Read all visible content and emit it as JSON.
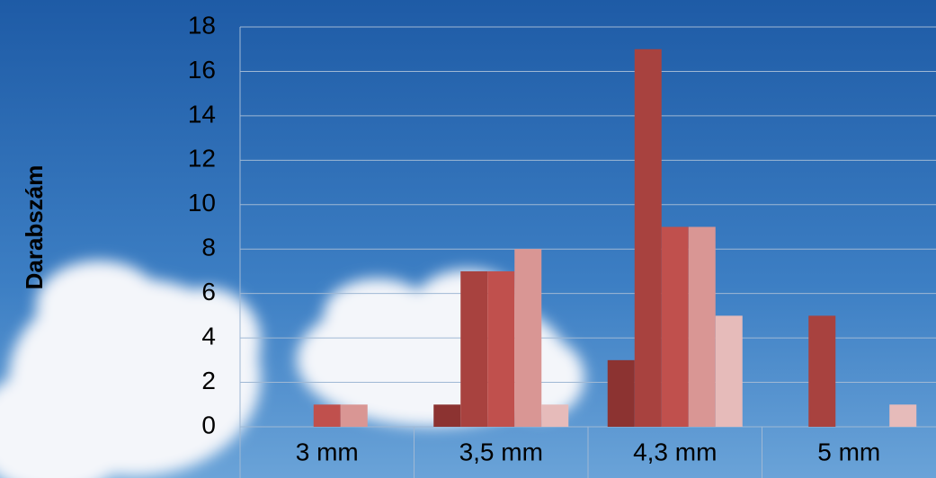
{
  "chart_data": {
    "type": "bar",
    "y_label": "Darabszám",
    "categories": [
      "3 mm",
      "3,5 mm",
      "4,3 mm",
      "5 mm"
    ],
    "series": [
      {
        "color": "#8c3331",
        "values": [
          0,
          1,
          3,
          0
        ]
      },
      {
        "color": "#a8423f",
        "values": [
          0,
          7,
          17,
          5
        ]
      },
      {
        "color": "#c0504d",
        "values": [
          1,
          7,
          9,
          0
        ]
      },
      {
        "color": "#d99694",
        "values": [
          1,
          8,
          9,
          0
        ]
      },
      {
        "color": "#e6bbba",
        "values": [
          0,
          1,
          5,
          1
        ]
      }
    ],
    "ylim": [
      0,
      18
    ],
    "yticks": [
      0,
      2,
      4,
      6,
      8,
      10,
      12,
      14,
      16,
      18
    ],
    "grid": true
  }
}
